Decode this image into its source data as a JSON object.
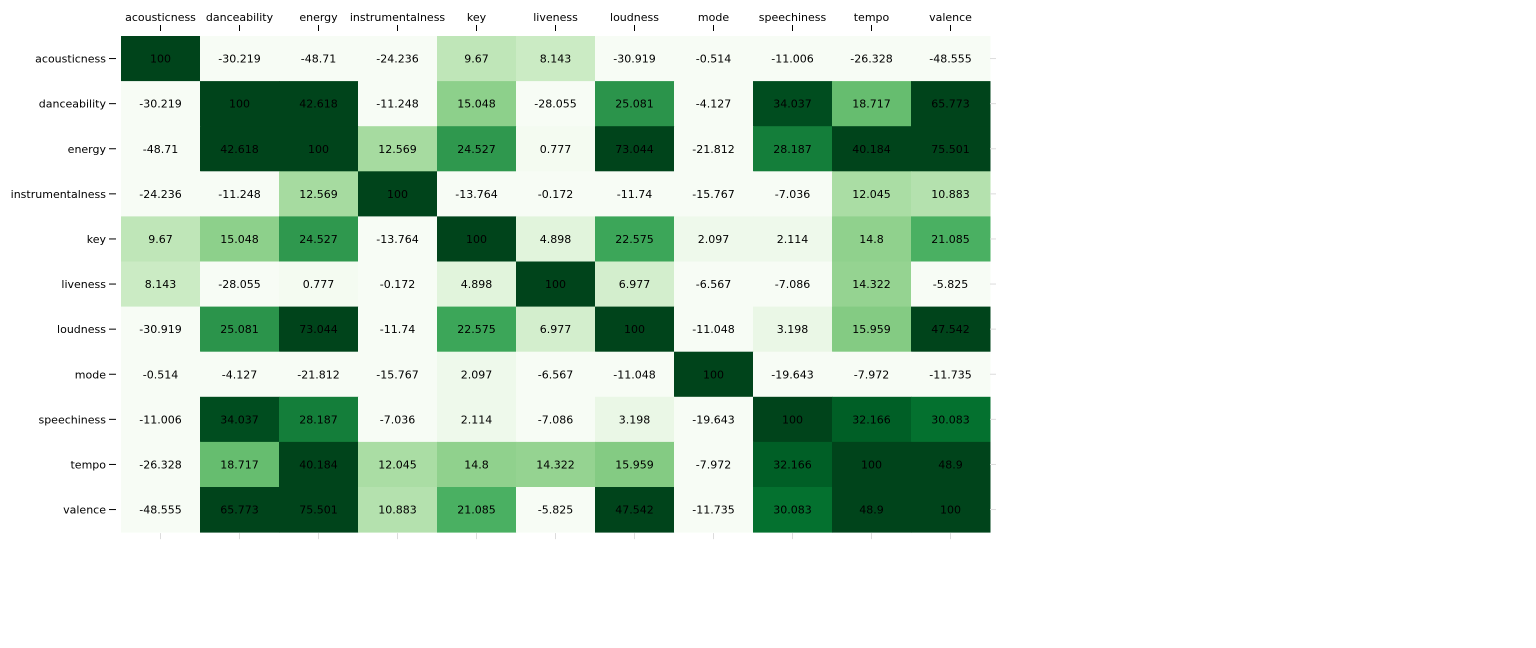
{
  "chart_data": {
    "type": "heatmap",
    "title": "",
    "xlabel": "",
    "ylabel": "",
    "color_scale": {
      "name": "greens",
      "domain": [
        0,
        35
      ],
      "low_color": "#f7fcf5",
      "high_color": "#00441b"
    },
    "x_categories": [
      "acousticness",
      "danceability",
      "energy",
      "instrumentalness",
      "key",
      "liveness",
      "loudness",
      "mode",
      "speechiness",
      "tempo",
      "valence"
    ],
    "y_categories": [
      "acousticness",
      "danceability",
      "energy",
      "instrumentalness",
      "key",
      "liveness",
      "loudness",
      "mode",
      "speechiness",
      "tempo",
      "valence"
    ],
    "x_axis_position": "top",
    "y_axis_position": "left",
    "values": [
      [
        100,
        -30.219,
        -48.71,
        -24.236,
        9.67,
        8.143,
        -30.919,
        -0.514,
        -11.006,
        -26.328,
        -48.555
      ],
      [
        -30.219,
        100,
        42.618,
        -11.248,
        15.048,
        -28.055,
        25.081,
        -4.127,
        34.037,
        18.717,
        65.773
      ],
      [
        -48.71,
        42.618,
        100,
        12.569,
        24.527,
        0.777,
        73.044,
        -21.812,
        28.187,
        40.184,
        75.501
      ],
      [
        -24.236,
        -11.248,
        12.569,
        100,
        -13.764,
        -0.172,
        -11.74,
        -15.767,
        -7.036,
        12.045,
        10.883
      ],
      [
        9.67,
        15.048,
        24.527,
        -13.764,
        100,
        4.898,
        22.575,
        2.097,
        2.114,
        14.8,
        21.085
      ],
      [
        8.143,
        -28.055,
        0.777,
        -0.172,
        4.898,
        100,
        6.977,
        -6.567,
        -7.086,
        14.322,
        -5.825
      ],
      [
        -30.919,
        25.081,
        73.044,
        -11.74,
        22.575,
        6.977,
        100,
        -11.048,
        3.198,
        15.959,
        47.542
      ],
      [
        -0.514,
        -4.127,
        -21.812,
        -15.767,
        2.097,
        -6.567,
        -11.048,
        100,
        -19.643,
        -7.972,
        -11.735
      ],
      [
        -11.006,
        34.037,
        28.187,
        -7.036,
        2.114,
        -7.086,
        3.198,
        -19.643,
        100,
        32.166,
        30.083
      ],
      [
        -26.328,
        18.717,
        40.184,
        12.045,
        14.8,
        14.322,
        15.959,
        -7.972,
        32.166,
        100,
        48.9
      ],
      [
        -48.555,
        65.773,
        75.501,
        10.883,
        21.085,
        -5.825,
        47.542,
        -11.735,
        30.083,
        48.9,
        100
      ]
    ]
  }
}
